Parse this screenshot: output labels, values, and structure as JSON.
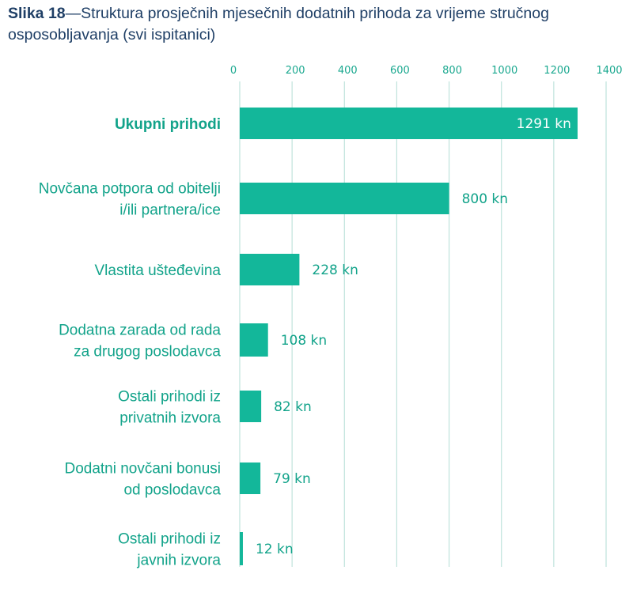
{
  "title": {
    "prefix": "Slika 18",
    "text": "—Struktura prosječnih mjesečnih dodatnih prihoda za vrijeme stručnog osposobljavanja (svi ispitanici)"
  },
  "colors": {
    "bar": "#13b79a",
    "label": "#12a38a",
    "grid": "#bfe3dc",
    "title": "#1f3f66",
    "inside_label": "#ffffff"
  },
  "chart_data": {
    "type": "bar",
    "orientation": "horizontal",
    "title": "Slika 18—Struktura prosječnih mjesečnih dodatnih prihoda za vrijeme stručnog osposobljavanja (svi ispitanici)",
    "xlabel": "",
    "ylabel": "",
    "xlim": [
      0,
      1400
    ],
    "ticks": [
      0,
      200,
      400,
      600,
      800,
      1000,
      1200,
      1400
    ],
    "tick_labels": [
      "0",
      "200",
      "400",
      "600",
      "800",
      "1000",
      "1200",
      "1400"
    ],
    "grid": true,
    "categories": [
      {
        "lines": [
          "Ukupni prihodi"
        ],
        "emphasis": true
      },
      {
        "lines": [
          "Novčana potpora od obitelji",
          "i/ili partnera/ice"
        ],
        "emphasis": false
      },
      {
        "lines": [
          "Vlastita ušteđevina"
        ],
        "emphasis": false
      },
      {
        "lines": [
          "Dodatna zarada od rada",
          "za drugog poslodavca"
        ],
        "emphasis": false
      },
      {
        "lines": [
          "Ostali prihodi iz",
          "privatnih izvora"
        ],
        "emphasis": false
      },
      {
        "lines": [
          "Dodatni novčani bonusi",
          "od poslodavca"
        ],
        "emphasis": false
      },
      {
        "lines": [
          "Ostali prihodi iz",
          "javnih izvora"
        ],
        "emphasis": false
      }
    ],
    "values": [
      1291,
      800,
      228,
      108,
      82,
      79,
      12
    ],
    "value_labels": [
      "1291 kn",
      "800 kn",
      "228 kn",
      "108 kn",
      "82 kn",
      "79 kn",
      "12 kn"
    ],
    "unit": "kn"
  }
}
